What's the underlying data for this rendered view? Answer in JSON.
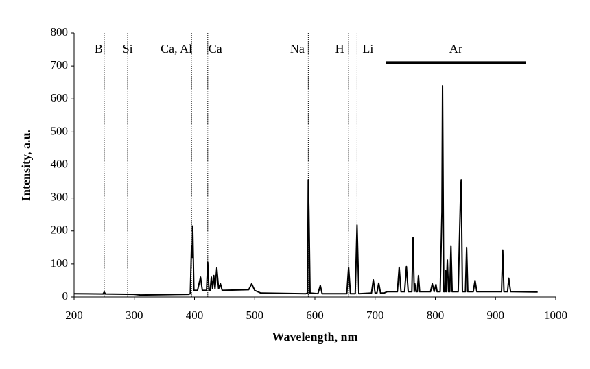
{
  "chart_data": {
    "type": "line",
    "xlabel": "Wavelength, nm",
    "ylabel": "Intensity, a.u.",
    "xlim": [
      200,
      1000
    ],
    "xticks": [
      200,
      300,
      400,
      500,
      600,
      700,
      800,
      900,
      1000
    ],
    "ylim": [
      0,
      800
    ],
    "yticks": [
      0,
      100,
      200,
      300,
      400,
      500,
      600,
      700,
      800
    ],
    "grid": false,
    "x": [
      200,
      248,
      250,
      252,
      300,
      310,
      350,
      390,
      393,
      395,
      396,
      397,
      399,
      405,
      410,
      413,
      418,
      420,
      422,
      424,
      426,
      428,
      430,
      432,
      434,
      437,
      440,
      443,
      446,
      490,
      495,
      500,
      510,
      585,
      588,
      589,
      590,
      592,
      605,
      609,
      612,
      653,
      656,
      659,
      667,
      670,
      673,
      694,
      697,
      700,
      703,
      706,
      709,
      715,
      720,
      737,
      740,
      743,
      749,
      752,
      755,
      761,
      763,
      765,
      766,
      768,
      770,
      772,
      774,
      792,
      795,
      798,
      801,
      803,
      808,
      811,
      812,
      814,
      816,
      817,
      818,
      820,
      822,
      824,
      826,
      828,
      838,
      842,
      843,
      845,
      850,
      852,
      854,
      863,
      866,
      869,
      910,
      912,
      914,
      920,
      922,
      925,
      965,
      970
    ],
    "series": [
      {
        "color": "#000000",
        "values": [
          10,
          9,
          15,
          9,
          8,
          6,
          7,
          8,
          10,
          155,
          120,
          215,
          20,
          20,
          60,
          20,
          20,
          20,
          105,
          20,
          20,
          60,
          25,
          65,
          25,
          88,
          25,
          40,
          20,
          22,
          40,
          20,
          12,
          10,
          12,
          355,
          265,
          12,
          10,
          35,
          10,
          10,
          90,
          10,
          10,
          218,
          10,
          12,
          52,
          12,
          12,
          42,
          12,
          12,
          16,
          16,
          90,
          16,
          16,
          92,
          16,
          16,
          180,
          16,
          40,
          16,
          16,
          65,
          16,
          16,
          40,
          16,
          38,
          16,
          16,
          258,
          640,
          16,
          16,
          80,
          16,
          112,
          16,
          16,
          155,
          16,
          16,
          320,
          355,
          16,
          16,
          150,
          16,
          16,
          50,
          16,
          16,
          142,
          16,
          16,
          57,
          16,
          15,
          15
        ]
      }
    ],
    "annotations": [
      {
        "label": "B",
        "x": 250
      },
      {
        "label": "Si",
        "x": 289
      },
      {
        "label": "Ca, Al",
        "x": 395
      },
      {
        "label": "Ca",
        "x": 422
      },
      {
        "label": "Na",
        "x": 589
      },
      {
        "label": "H",
        "x": 656
      },
      {
        "label": "Li",
        "x": 670
      }
    ],
    "range_annotation": {
      "label": "Ar",
      "x": [
        718,
        950
      ],
      "y": 710
    }
  }
}
